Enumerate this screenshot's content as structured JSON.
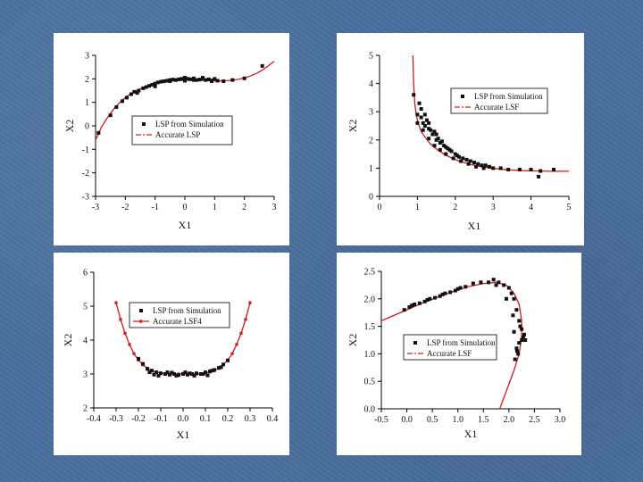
{
  "chart_data": [
    {
      "type": "scatter",
      "xlabel": "X1",
      "ylabel": "X2",
      "xlim": [
        -3,
        3
      ],
      "ylim": [
        -3,
        3
      ],
      "xticks": [
        -3,
        -2,
        -1,
        0,
        1,
        2,
        3
      ],
      "yticks": [
        -3,
        -2,
        -1,
        0,
        1,
        2,
        3
      ],
      "tick_labels_x": [
        "-3",
        "-2",
        "-1",
        "0",
        "1",
        "2",
        "3"
      ],
      "tick_labels_y": [
        "-3",
        "-2",
        "-1",
        "0",
        "1",
        "2",
        "3"
      ],
      "legend_position": "center-right",
      "series": [
        {
          "name": "LSP from Simulation",
          "kind": "points",
          "color": "#111111",
          "x": [
            -2.9,
            -2.5,
            -2.3,
            -2.1,
            -1.95,
            -1.8,
            -1.7,
            -1.55,
            -1.4,
            -1.3,
            -1.2,
            -1.1,
            -1.0,
            -0.9,
            -0.8,
            -0.7,
            -0.6,
            -0.5,
            -0.4,
            -0.3,
            -0.2,
            -0.1,
            0.0,
            0.1,
            0.2,
            0.3,
            0.4,
            0.5,
            0.6,
            0.7,
            0.8,
            0.9,
            1.0,
            1.1,
            1.3,
            1.6,
            2.0,
            2.6,
            -1.6,
            -1.0,
            -0.5,
            0.0,
            0.3,
            0.6,
            0.9
          ],
          "y": [
            -0.3,
            0.45,
            0.8,
            1.05,
            1.2,
            1.35,
            1.45,
            1.5,
            1.6,
            1.65,
            1.7,
            1.75,
            1.8,
            1.85,
            1.88,
            1.9,
            1.92,
            1.95,
            1.97,
            1.95,
            1.98,
            2.0,
            2.05,
            2.0,
            1.98,
            2.02,
            1.95,
            1.97,
            2.03,
            1.95,
            1.98,
            1.9,
            2.0,
            1.92,
            1.9,
            1.95,
            2.02,
            2.55,
            1.4,
            1.68,
            1.9,
            1.92,
            1.95,
            2.05,
            1.93
          ]
        },
        {
          "name": "Accurate LSP",
          "kind": "line",
          "color": "#d11a1a",
          "x": [
            -3.0,
            -2.8,
            -2.6,
            -2.4,
            -2.2,
            -2.0,
            -1.8,
            -1.6,
            -1.4,
            -1.2,
            -1.0,
            -0.8,
            -0.6,
            -0.4,
            -0.2,
            0.0,
            0.2,
            0.4,
            0.6,
            0.8,
            1.0,
            1.2,
            1.4,
            1.6,
            1.8,
            2.0,
            2.2,
            2.4,
            2.6,
            2.8,
            3.0
          ],
          "y": [
            -0.6,
            -0.05,
            0.35,
            0.7,
            0.98,
            1.2,
            1.38,
            1.52,
            1.63,
            1.72,
            1.79,
            1.84,
            1.88,
            1.91,
            1.93,
            1.94,
            1.94,
            1.94,
            1.93,
            1.92,
            1.91,
            1.91,
            1.92,
            1.94,
            1.98,
            2.04,
            2.12,
            2.23,
            2.37,
            2.55,
            2.75
          ]
        }
      ]
    },
    {
      "type": "scatter",
      "xlabel": "X1",
      "ylabel": "X2",
      "xlim": [
        0,
        5
      ],
      "ylim": [
        0,
        5
      ],
      "xticks": [
        0,
        1,
        2,
        3,
        4,
        5
      ],
      "yticks": [
        0,
        1,
        2,
        3,
        4,
        5
      ],
      "tick_labels_x": [
        "0",
        "1",
        "2",
        "3",
        "4",
        "5"
      ],
      "tick_labels_y": [
        "0",
        "1",
        "2",
        "3",
        "4",
        "5"
      ],
      "legend_position": "top-right",
      "series": [
        {
          "name": "LSP from Simulation",
          "kind": "points",
          "color": "#111111",
          "x": [
            0.9,
            1.0,
            1.05,
            1.1,
            1.1,
            1.15,
            1.2,
            1.2,
            1.25,
            1.3,
            1.3,
            1.35,
            1.4,
            1.45,
            1.5,
            1.5,
            1.55,
            1.6,
            1.65,
            1.7,
            1.75,
            1.8,
            1.85,
            1.9,
            2.0,
            2.05,
            2.1,
            2.2,
            2.3,
            2.4,
            2.5,
            2.6,
            2.7,
            2.8,
            2.9,
            3.0,
            3.2,
            3.4,
            3.7,
            4.0,
            4.2,
            4.25,
            4.6,
            1.0,
            1.15,
            1.3,
            1.45,
            1.6,
            1.75,
            1.95,
            2.15,
            2.35,
            2.55,
            2.75
          ],
          "y": [
            3.6,
            2.9,
            3.3,
            2.8,
            3.1,
            2.6,
            2.9,
            2.5,
            2.7,
            2.4,
            2.6,
            2.35,
            2.2,
            2.3,
            2.0,
            2.2,
            2.05,
            1.9,
            1.95,
            1.8,
            1.75,
            1.7,
            1.65,
            1.6,
            1.5,
            1.45,
            1.4,
            1.35,
            1.3,
            1.25,
            1.2,
            1.15,
            1.1,
            1.1,
            1.05,
            1.0,
            1.0,
            0.95,
            0.95,
            0.95,
            0.7,
            0.9,
            0.95,
            2.6,
            2.35,
            2.05,
            1.8,
            1.65,
            1.5,
            1.35,
            1.25,
            1.15,
            1.05,
            1.0
          ]
        },
        {
          "name": "Accurate LSF",
          "kind": "line",
          "color": "#d11a1a",
          "x": [
            0.88,
            0.9,
            0.93,
            0.97,
            1.02,
            1.1,
            1.2,
            1.35,
            1.5,
            1.7,
            1.9,
            2.1,
            2.4,
            2.7,
            3.0,
            3.4,
            3.8,
            4.2,
            4.6,
            5.0
          ],
          "y": [
            5.0,
            4.0,
            3.3,
            2.9,
            2.6,
            2.3,
            2.1,
            1.85,
            1.68,
            1.5,
            1.36,
            1.25,
            1.13,
            1.05,
            0.99,
            0.94,
            0.91,
            0.9,
            0.89,
            0.89
          ]
        }
      ]
    },
    {
      "type": "scatter",
      "xlabel": "X1",
      "ylabel": "X2",
      "xlim": [
        -0.4,
        0.4
      ],
      "ylim": [
        2,
        6
      ],
      "xticks": [
        -0.4,
        -0.3,
        -0.2,
        -0.1,
        0.0,
        0.1,
        0.2,
        0.3,
        0.4
      ],
      "yticks": [
        2,
        3,
        4,
        5,
        6
      ],
      "tick_labels_x": [
        "-0.4",
        "-0.3",
        "-0.2",
        "-0.1",
        "0.0",
        "0.1",
        "0.2",
        "0.3",
        "0.4"
      ],
      "tick_labels_y": [
        "2",
        "3",
        "4",
        "5",
        "6"
      ],
      "legend_position": "top-right",
      "series": [
        {
          "name": "LSP from Simulation",
          "kind": "points",
          "color": "#111111",
          "x": [
            -0.2,
            -0.18,
            -0.16,
            -0.14,
            -0.12,
            -0.1,
            -0.08,
            -0.06,
            -0.04,
            -0.02,
            0.0,
            0.02,
            0.04,
            0.06,
            0.08,
            0.1,
            0.12,
            0.14,
            0.16,
            0.18,
            0.2,
            -0.15,
            -0.11,
            -0.07,
            -0.03,
            0.01,
            0.05,
            0.09,
            0.13,
            0.17,
            -0.13,
            -0.05,
            0.03,
            0.11
          ],
          "y": [
            3.45,
            3.3,
            3.15,
            3.1,
            3.05,
            3.02,
            3.0,
            2.98,
            3.0,
            2.97,
            3.0,
            2.98,
            3.0,
            3.02,
            3.0,
            3.05,
            3.08,
            3.12,
            3.18,
            3.28,
            3.4,
            3.05,
            2.95,
            3.05,
            2.95,
            3.05,
            2.95,
            3.0,
            3.1,
            3.2,
            2.98,
            3.04,
            3.02,
            2.96
          ]
        },
        {
          "name": "Accurate LSF4",
          "kind": "line+markers",
          "color": "#d11a1a",
          "x": [
            -0.3,
            -0.28,
            -0.26,
            -0.24,
            -0.22,
            -0.2,
            -0.18,
            -0.16,
            -0.14,
            -0.12,
            -0.1,
            -0.08,
            -0.06,
            -0.04,
            -0.02,
            0.0,
            0.02,
            0.04,
            0.06,
            0.08,
            0.1,
            0.12,
            0.14,
            0.16,
            0.18,
            0.2,
            0.22,
            0.24,
            0.26,
            0.28,
            0.3
          ],
          "y": [
            5.1,
            4.61,
            4.2,
            3.87,
            3.6,
            3.41,
            3.27,
            3.17,
            3.1,
            3.06,
            3.03,
            3.01,
            3.0,
            3.0,
            3.0,
            3.0,
            3.0,
            3.0,
            3.0,
            3.01,
            3.03,
            3.06,
            3.1,
            3.17,
            3.27,
            3.41,
            3.6,
            3.87,
            4.2,
            4.61,
            5.1
          ]
        }
      ]
    },
    {
      "type": "scatter",
      "xlabel": "X1",
      "ylabel": "X2",
      "xlim": [
        -0.5,
        3.0
      ],
      "ylim": [
        0.0,
        2.5
      ],
      "xticks": [
        -0.5,
        0.0,
        0.5,
        1.0,
        1.5,
        2.0,
        2.5,
        3.0
      ],
      "yticks": [
        0.0,
        0.5,
        1.0,
        1.5,
        2.0,
        2.5
      ],
      "tick_labels_x": [
        "-0.5",
        "0.0",
        "0.5",
        "1.0",
        "1.5",
        "2.0",
        "2.5",
        "3.0"
      ],
      "tick_labels_y": [
        "0.0",
        "0.5",
        "1.0",
        "1.5",
        "2.0",
        "2.5"
      ],
      "legend_position": "center",
      "series": [
        {
          "name": "LSP from Simulation",
          "kind": "points",
          "color": "#111111",
          "x": [
            -0.05,
            0.05,
            0.15,
            0.25,
            0.35,
            0.45,
            0.55,
            0.65,
            0.75,
            0.85,
            0.95,
            1.05,
            1.15,
            1.3,
            1.45,
            1.6,
            1.7,
            1.8,
            1.9,
            2.0,
            2.05,
            2.1,
            2.15,
            2.2,
            2.25,
            2.3,
            2.2,
            2.15,
            2.25,
            2.1,
            2.18,
            2.12,
            2.22,
            2.28,
            2.32,
            2.16,
            2.08,
            1.75,
            1.95,
            0.1,
            0.4,
            0.7,
            1.0
          ],
          "y": [
            1.8,
            1.85,
            1.9,
            1.92,
            1.95,
            2.0,
            2.02,
            2.05,
            2.1,
            2.12,
            2.15,
            2.2,
            2.22,
            2.28,
            2.3,
            2.3,
            2.35,
            2.3,
            2.25,
            2.2,
            2.1,
            2.0,
            1.8,
            1.6,
            1.45,
            1.35,
            1.2,
            1.1,
            1.25,
            1.4,
            1.0,
            0.9,
            1.5,
            1.3,
            1.25,
            1.05,
            1.7,
            2.25,
            2.0,
            1.88,
            1.98,
            2.08,
            2.18
          ]
        },
        {
          "name": "Accurate LSF",
          "kind": "line",
          "color": "#d11a1a",
          "x": [
            -0.5,
            -0.3,
            0.0,
            0.3,
            0.6,
            0.9,
            1.2,
            1.5,
            1.75,
            1.95,
            2.1,
            2.2,
            2.25,
            2.25,
            2.2,
            2.1,
            1.98,
            1.88,
            1.82
          ],
          "y": [
            1.6,
            1.68,
            1.8,
            1.92,
            2.03,
            2.13,
            2.22,
            2.28,
            2.3,
            2.25,
            2.1,
            1.9,
            1.6,
            1.3,
            1.0,
            0.7,
            0.4,
            0.15,
            0.0
          ]
        }
      ]
    }
  ]
}
